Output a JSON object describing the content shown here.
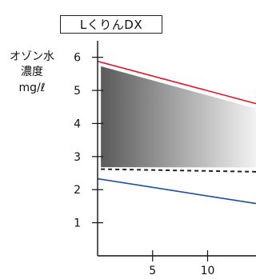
{
  "chart_data": {
    "type": "line",
    "title": "LくりんDX",
    "ylabel_lines": [
      "オゾン水",
      "濃度",
      "mg/ℓ"
    ],
    "xlim": [
      0,
      14.4
    ],
    "ylim": [
      0,
      6.5
    ],
    "x_ticks": [
      5,
      10
    ],
    "y_ticks": [
      1,
      2,
      3,
      4,
      5,
      6
    ],
    "grid": false,
    "series": [
      {
        "color": "#e31b2c",
        "style": "solid",
        "x": [
          0,
          14.4
        ],
        "y": [
          5.88,
          4.6
        ]
      },
      {
        "color": "#1a4fa0",
        "style": "solid",
        "x": [
          0,
          14.4
        ],
        "y": [
          2.33,
          1.58
        ]
      },
      {
        "color": "#222222",
        "style": "dashed",
        "x": [
          0.3,
          14.4
        ],
        "y": [
          2.62,
          2.54
        ]
      }
    ],
    "shaded_band": {
      "x": [
        0.3,
        14.4
      ],
      "upper": [
        5.73,
        4.45
      ],
      "lower": [
        2.68,
        2.67
      ],
      "gradient_from": "#5a5a5a",
      "gradient_to": "#f2f2f2"
    }
  }
}
